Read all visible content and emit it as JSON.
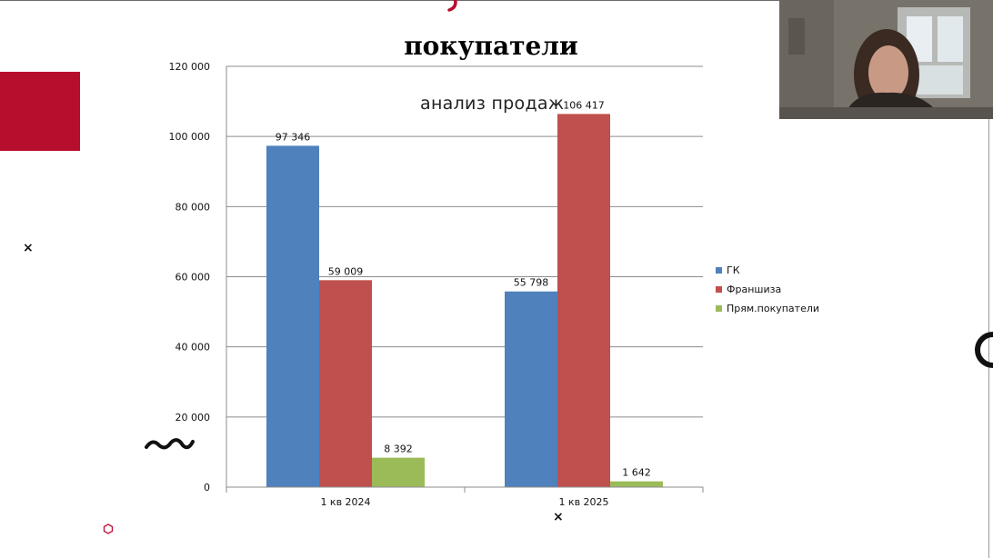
{
  "chart_data": {
    "type": "bar",
    "title": "покупатели",
    "subtitle": "анализ продаж",
    "categories": [
      "1 кв 2024",
      "1 кв 2025"
    ],
    "series": [
      {
        "name": "ГК",
        "color": "#4f81bd",
        "values": [
          97346,
          55798
        ],
        "labels": [
          "97 346",
          "55 798"
        ]
      },
      {
        "name": "Франшиза",
        "color": "#c0504d",
        "values": [
          59009,
          106417
        ],
        "labels": [
          "59 009",
          "106 417"
        ]
      },
      {
        "name": "Прям.покупатели",
        "color": "#9bbb59",
        "values": [
          8392,
          1642
        ],
        "labels": [
          "8 392",
          "1 642"
        ]
      }
    ],
    "ylim": [
      0,
      120000
    ],
    "yticks": [
      0,
      20000,
      40000,
      60000,
      80000,
      100000,
      120000
    ],
    "ytick_labels": [
      "0",
      "20 000",
      "40 000",
      "60 000",
      "80 000",
      "100 000",
      "120 000"
    ],
    "grid": true,
    "legend": "right"
  },
  "decor": {
    "x_mark": "×",
    "accent_color": "#b80e2e",
    "icons": [
      "zigzag-icon",
      "hexagon-icon",
      "ring-icon",
      "close-x-icon"
    ]
  },
  "video_feed": {
    "icon": "webcam-participant"
  }
}
